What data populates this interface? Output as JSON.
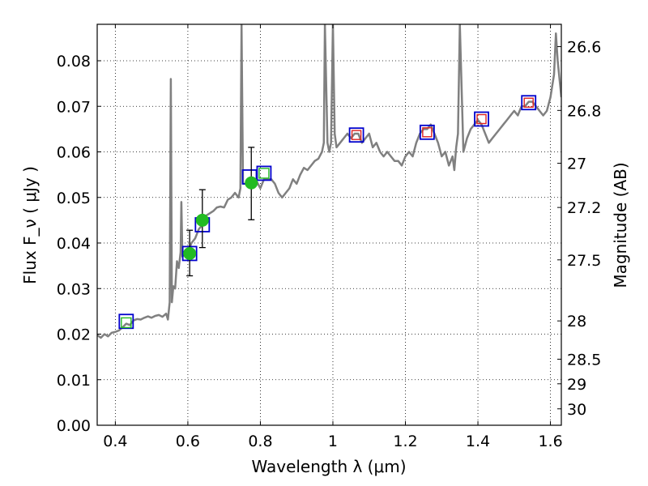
{
  "chart_data": {
    "type": "scatter",
    "xlabel": "Wavelength  λ (μm)",
    "ylabel": "Flux  F_ν  ( μJy )",
    "y2label": "Magnitude (AB)",
    "xlim": [
      0.35,
      1.63
    ],
    "ylim": [
      0.0,
      0.088
    ],
    "grid": true,
    "x_ticks": [
      0.4,
      0.6,
      0.8,
      1.0,
      1.2,
      1.4,
      1.6
    ],
    "x_tick_labels": [
      "0.4",
      "0.6",
      "0.8",
      "1",
      "1.2",
      "1.4",
      "1.6"
    ],
    "y_ticks": [
      0.0,
      0.01,
      0.02,
      0.03,
      0.04,
      0.05,
      0.06,
      0.07,
      0.08
    ],
    "y_tick_labels": [
      "0.00",
      "0.01",
      "0.02",
      "0.03",
      "0.04",
      "0.05",
      "0.06",
      "0.07",
      "0.08"
    ],
    "y2_ticks": [
      {
        "flux": 0.0831,
        "label": "26.6"
      },
      {
        "flux": 0.0691,
        "label": "26.8"
      },
      {
        "flux": 0.0575,
        "label": "27"
      },
      {
        "flux": 0.0478,
        "label": "27.2"
      },
      {
        "flux": 0.0363,
        "label": "27.5"
      },
      {
        "flux": 0.0229,
        "label": "28"
      },
      {
        "flux": 0.0145,
        "label": "28.5"
      },
      {
        "flux": 0.0091,
        "label": "29"
      },
      {
        "flux": 0.0036,
        "label": "30"
      }
    ],
    "series": [
      {
        "kind": "line",
        "color": "#808080",
        "points": [
          [
            0.35,
            0.0198
          ],
          [
            0.36,
            0.0192
          ],
          [
            0.37,
            0.02
          ],
          [
            0.38,
            0.0195
          ],
          [
            0.39,
            0.0203
          ],
          [
            0.4,
            0.0205
          ],
          [
            0.41,
            0.0208
          ],
          [
            0.42,
            0.0215
          ],
          [
            0.43,
            0.0223
          ],
          [
            0.44,
            0.022
          ],
          [
            0.45,
            0.023
          ],
          [
            0.46,
            0.0233
          ],
          [
            0.47,
            0.0232
          ],
          [
            0.48,
            0.0236
          ],
          [
            0.49,
            0.0239
          ],
          [
            0.5,
            0.0236
          ],
          [
            0.51,
            0.024
          ],
          [
            0.52,
            0.0242
          ],
          [
            0.53,
            0.0238
          ],
          [
            0.54,
            0.0245
          ],
          [
            0.545,
            0.0232
          ],
          [
            0.55,
            0.027
          ],
          [
            0.553,
            0.076
          ],
          [
            0.556,
            0.027
          ],
          [
            0.56,
            0.0305
          ],
          [
            0.565,
            0.03
          ],
          [
            0.57,
            0.036
          ],
          [
            0.575,
            0.0345
          ],
          [
            0.58,
            0.038
          ],
          [
            0.582,
            0.049
          ],
          [
            0.585,
            0.037
          ],
          [
            0.59,
            0.0375
          ],
          [
            0.6,
            0.0378
          ],
          [
            0.61,
            0.04
          ],
          [
            0.62,
            0.041
          ],
          [
            0.63,
            0.043
          ],
          [
            0.64,
            0.044
          ],
          [
            0.65,
            0.046
          ],
          [
            0.66,
            0.0465
          ],
          [
            0.67,
            0.047
          ],
          [
            0.68,
            0.0478
          ],
          [
            0.69,
            0.048
          ],
          [
            0.7,
            0.0478
          ],
          [
            0.71,
            0.0495
          ],
          [
            0.72,
            0.05
          ],
          [
            0.73,
            0.051
          ],
          [
            0.74,
            0.05
          ],
          [
            0.745,
            0.052
          ],
          [
            0.748,
            0.088
          ],
          [
            0.752,
            0.053
          ],
          [
            0.76,
            0.053
          ],
          [
            0.77,
            0.0532
          ],
          [
            0.78,
            0.053
          ],
          [
            0.79,
            0.0535
          ],
          [
            0.8,
            0.052
          ],
          [
            0.81,
            0.054
          ],
          [
            0.82,
            0.054
          ],
          [
            0.83,
            0.054
          ],
          [
            0.84,
            0.053
          ],
          [
            0.85,
            0.051
          ],
          [
            0.86,
            0.05
          ],
          [
            0.87,
            0.051
          ],
          [
            0.88,
            0.052
          ],
          [
            0.89,
            0.054
          ],
          [
            0.9,
            0.053
          ],
          [
            0.91,
            0.055
          ],
          [
            0.92,
            0.0565
          ],
          [
            0.93,
            0.056
          ],
          [
            0.94,
            0.057
          ],
          [
            0.95,
            0.058
          ],
          [
            0.96,
            0.0585
          ],
          [
            0.97,
            0.06
          ],
          [
            0.975,
            0.062
          ],
          [
            0.978,
            0.088
          ],
          [
            0.985,
            0.062
          ],
          [
            0.99,
            0.06
          ],
          [
            0.995,
            0.062
          ],
          [
            1.0,
            0.088
          ],
          [
            1.005,
            0.064
          ],
          [
            1.01,
            0.061
          ],
          [
            1.02,
            0.062
          ],
          [
            1.03,
            0.063
          ],
          [
            1.04,
            0.064
          ],
          [
            1.05,
            0.063
          ],
          [
            1.06,
            0.064
          ],
          [
            1.07,
            0.064
          ],
          [
            1.08,
            0.062
          ],
          [
            1.09,
            0.063
          ],
          [
            1.1,
            0.064
          ],
          [
            1.11,
            0.061
          ],
          [
            1.12,
            0.062
          ],
          [
            1.13,
            0.06
          ],
          [
            1.14,
            0.059
          ],
          [
            1.15,
            0.06
          ],
          [
            1.16,
            0.059
          ],
          [
            1.17,
            0.058
          ],
          [
            1.18,
            0.058
          ],
          [
            1.19,
            0.057
          ],
          [
            1.2,
            0.059
          ],
          [
            1.21,
            0.06
          ],
          [
            1.22,
            0.059
          ],
          [
            1.23,
            0.062
          ],
          [
            1.24,
            0.064
          ],
          [
            1.25,
            0.065
          ],
          [
            1.26,
            0.065
          ],
          [
            1.27,
            0.066
          ],
          [
            1.28,
            0.064
          ],
          [
            1.29,
            0.062
          ],
          [
            1.3,
            0.059
          ],
          [
            1.31,
            0.06
          ],
          [
            1.32,
            0.057
          ],
          [
            1.33,
            0.059
          ],
          [
            1.335,
            0.056
          ],
          [
            1.34,
            0.061
          ],
          [
            1.345,
            0.064
          ],
          [
            1.35,
            0.088
          ],
          [
            1.36,
            0.06
          ],
          [
            1.37,
            0.063
          ],
          [
            1.38,
            0.065
          ],
          [
            1.39,
            0.066
          ],
          [
            1.4,
            0.067
          ],
          [
            1.41,
            0.066
          ],
          [
            1.42,
            0.064
          ],
          [
            1.43,
            0.062
          ],
          [
            1.44,
            0.063
          ],
          [
            1.45,
            0.064
          ],
          [
            1.46,
            0.065
          ],
          [
            1.47,
            0.066
          ],
          [
            1.48,
            0.067
          ],
          [
            1.49,
            0.068
          ],
          [
            1.5,
            0.069
          ],
          [
            1.51,
            0.068
          ],
          [
            1.52,
            0.07
          ],
          [
            1.53,
            0.07
          ],
          [
            1.54,
            0.071
          ],
          [
            1.55,
            0.071
          ],
          [
            1.56,
            0.07
          ],
          [
            1.57,
            0.069
          ],
          [
            1.58,
            0.068
          ],
          [
            1.59,
            0.069
          ],
          [
            1.6,
            0.072
          ],
          [
            1.61,
            0.077
          ],
          [
            1.615,
            0.086
          ],
          [
            1.62,
            0.08
          ],
          [
            1.63,
            0.072
          ]
        ]
      },
      {
        "kind": "square-blue",
        "color": "#0000cc",
        "points": [
          [
            0.43,
            0.0228
          ],
          [
            0.605,
            0.0377
          ],
          [
            0.64,
            0.044
          ],
          [
            0.77,
            0.0545
          ],
          [
            0.81,
            0.0553
          ],
          [
            1.065,
            0.0637
          ],
          [
            1.26,
            0.0643
          ],
          [
            1.41,
            0.0672
          ],
          [
            1.54,
            0.0708
          ]
        ]
      },
      {
        "kind": "square-red",
        "color": "#dd2222",
        "points": [
          [
            1.065,
            0.0637
          ],
          [
            1.26,
            0.0643
          ],
          [
            1.41,
            0.0672
          ],
          [
            1.54,
            0.0708
          ]
        ]
      },
      {
        "kind": "square-green",
        "color": "#22bb22",
        "points": [
          [
            0.43,
            0.0225
          ],
          [
            0.81,
            0.0553
          ]
        ]
      },
      {
        "kind": "dot-errorbar",
        "color": "#22bb22",
        "points": [
          {
            "x": 0.605,
            "y": 0.0377,
            "lo": 0.0328,
            "hi": 0.0428
          },
          {
            "x": 0.64,
            "y": 0.045,
            "lo": 0.039,
            "hi": 0.0517
          },
          {
            "x": 0.775,
            "y": 0.0532,
            "lo": 0.0451,
            "hi": 0.061
          }
        ]
      }
    ]
  }
}
